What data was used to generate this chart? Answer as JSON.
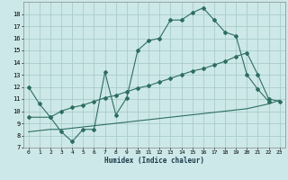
{
  "xlabel": "Humidex (Indice chaleur)",
  "xlim": [
    -0.5,
    23.5
  ],
  "ylim": [
    7,
    19
  ],
  "xticks": [
    0,
    1,
    2,
    3,
    4,
    5,
    6,
    7,
    8,
    9,
    10,
    11,
    12,
    13,
    14,
    15,
    16,
    17,
    18,
    19,
    20,
    21,
    22,
    23
  ],
  "yticks": [
    7,
    8,
    9,
    10,
    11,
    12,
    13,
    14,
    15,
    16,
    17,
    18
  ],
  "bg_color": "#cde8e8",
  "grid_color": "#aacccc",
  "line_color": "#2e6e62",
  "curve1_x": [
    0,
    1,
    2,
    3,
    4,
    5,
    6,
    7,
    8,
    9,
    10,
    11,
    12,
    13,
    14,
    15,
    16,
    17,
    18,
    19,
    20,
    21,
    22
  ],
  "curve1_y": [
    12.0,
    10.6,
    9.5,
    8.3,
    7.5,
    8.5,
    8.5,
    13.2,
    9.7,
    11.1,
    15.0,
    15.8,
    16.0,
    17.5,
    17.5,
    18.1,
    18.5,
    17.5,
    16.5,
    16.2,
    13.0,
    11.8,
    10.8
  ],
  "curve2_x": [
    0,
    2,
    3,
    4,
    5,
    6,
    7,
    8,
    9,
    10,
    11,
    12,
    13,
    14,
    15,
    16,
    17,
    18,
    19,
    20,
    21,
    22,
    23
  ],
  "curve2_y": [
    9.5,
    9.5,
    10.0,
    10.3,
    10.5,
    10.8,
    11.1,
    11.3,
    11.6,
    11.9,
    12.1,
    12.4,
    12.7,
    13.0,
    13.3,
    13.5,
    13.8,
    14.1,
    14.5,
    14.8,
    13.0,
    11.0,
    10.8
  ],
  "curve3_x": [
    0,
    1,
    2,
    3,
    4,
    5,
    6,
    7,
    8,
    9,
    10,
    11,
    12,
    13,
    14,
    15,
    16,
    17,
    18,
    19,
    20,
    21,
    22,
    23
  ],
  "curve3_y": [
    8.3,
    8.4,
    8.5,
    8.5,
    8.6,
    8.7,
    8.8,
    8.9,
    9.0,
    9.1,
    9.2,
    9.3,
    9.4,
    9.5,
    9.6,
    9.7,
    9.8,
    9.9,
    10.0,
    10.1,
    10.2,
    10.4,
    10.6,
    10.9
  ]
}
